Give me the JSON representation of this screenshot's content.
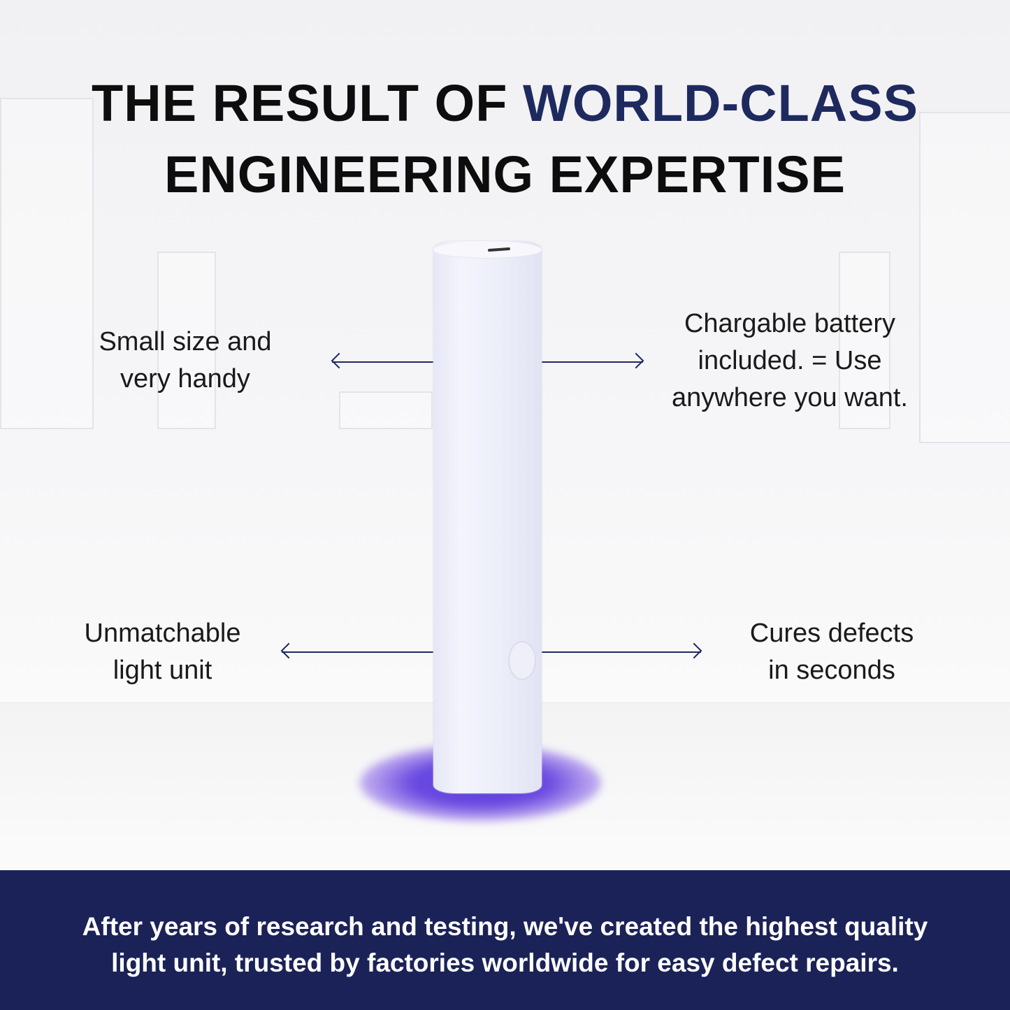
{
  "headline": {
    "line1_plain": "THE RESULT OF ",
    "line1_accent": "WORLD-CLASS",
    "line2": "ENGINEERING EXPERTISE"
  },
  "callouts": {
    "top_left": [
      "Small size and",
      "very handy"
    ],
    "top_right": [
      "Chargable battery",
      "included. = Use",
      "anywhere you want."
    ],
    "bottom_left": [
      "Unmatchable",
      "light unit"
    ],
    "bottom_right": [
      "Cures defects",
      "in seconds"
    ]
  },
  "banner": {
    "lines": [
      "After years of research and testing, we've created the highest quality",
      "light unit, trusted by factories worldwide for easy defect repairs."
    ]
  },
  "colors": {
    "accent": "#1e2a5e",
    "banner": "#1b2257",
    "uv_glow": "#5a3fe0"
  },
  "icons": {
    "device_button": "power-button-icon"
  }
}
